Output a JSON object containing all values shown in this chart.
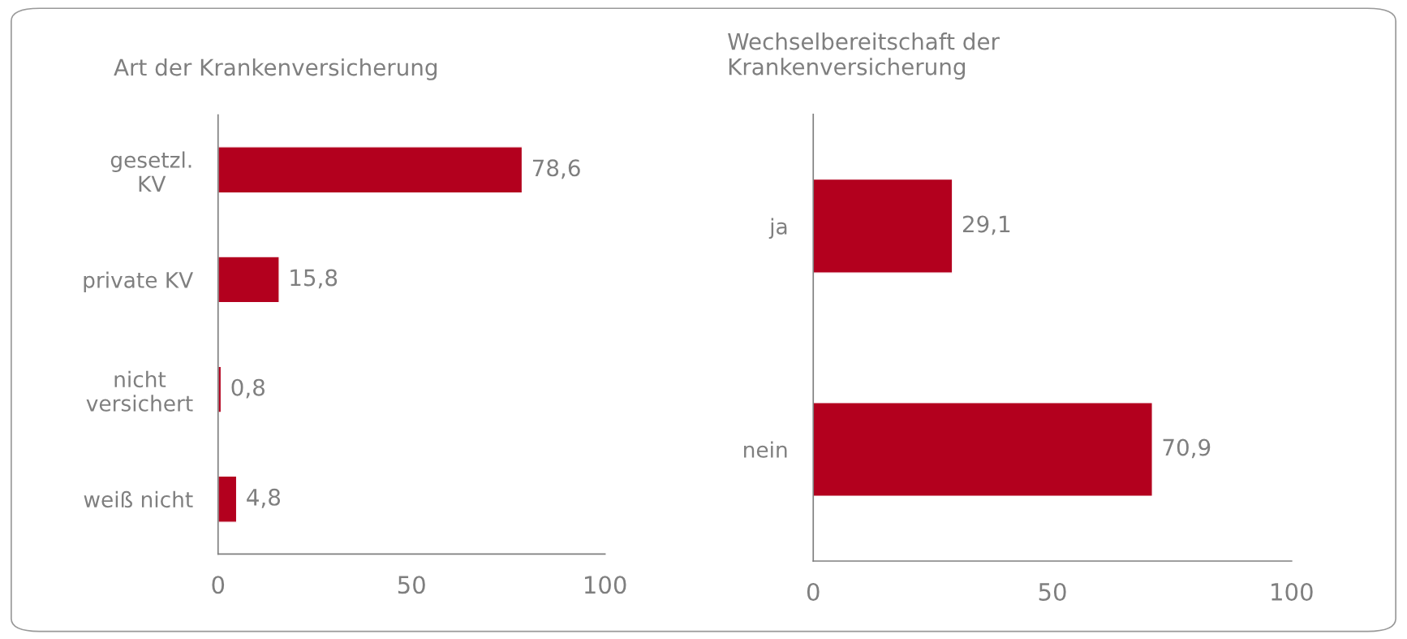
{
  "chart_data": [
    {
      "type": "bar",
      "orientation": "horizontal",
      "title": "Art der Krankenversicherung",
      "categories": [
        "gesetzl.\nKV",
        "private KV",
        "nicht\nversichert",
        "weiß nicht"
      ],
      "values": [
        78.6,
        15.8,
        0.8,
        4.8
      ],
      "value_labels": [
        "78,6",
        "15,8",
        "0,8",
        "4,8"
      ],
      "color": "#b3001e",
      "xlim": [
        0,
        100
      ],
      "xticks": [
        0,
        50,
        100
      ],
      "grid": false,
      "legend": false
    },
    {
      "type": "bar",
      "orientation": "horizontal",
      "title": "Wechselbereitschaft der\nKrankenversicherung",
      "categories": [
        "ja",
        "nein"
      ],
      "values": [
        29.1,
        70.9
      ],
      "value_labels": [
        "29,1",
        "70,9"
      ],
      "color": "#b3001e",
      "xlim": [
        0,
        100
      ],
      "xticks": [
        0,
        50,
        100
      ],
      "grid": false,
      "legend": false
    }
  ]
}
